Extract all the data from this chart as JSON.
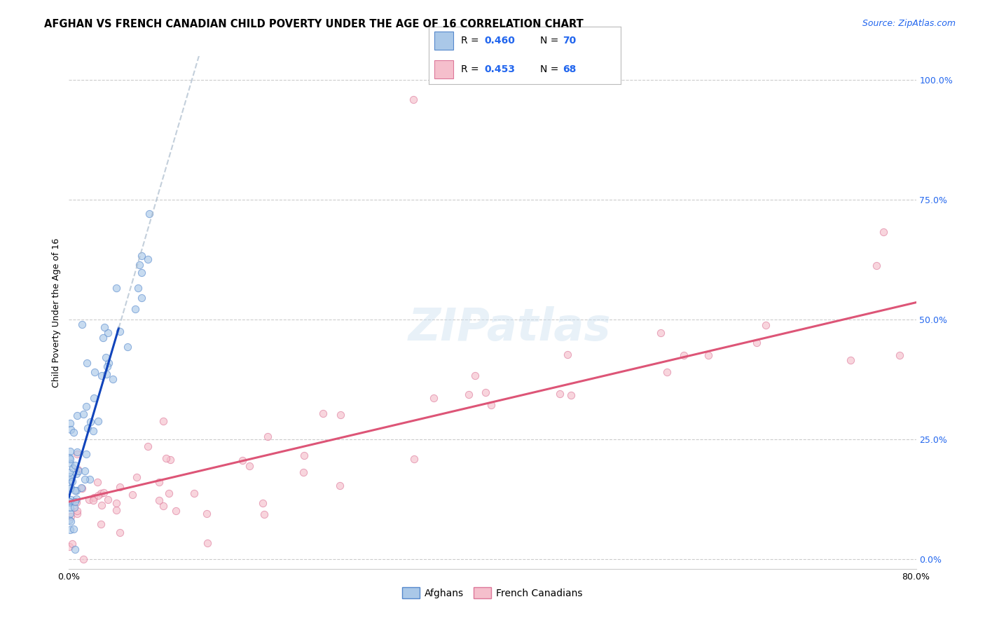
{
  "title": "AFGHAN VS FRENCH CANADIAN CHILD POVERTY UNDER THE AGE OF 16 CORRELATION CHART",
  "source": "Source: ZipAtlas.com",
  "ylabel": "Child Poverty Under the Age of 16",
  "xlim": [
    0.0,
    0.8
  ],
  "ylim": [
    -0.02,
    1.05
  ],
  "grid_color": "#cccccc",
  "background_color": "#ffffff",
  "watermark": "ZIPatlas",
  "afghans_color": "#aac8e8",
  "afghans_edge_color": "#5588cc",
  "afghans_line_color": "#1144bb",
  "afghans_dash_color": "#aabbdd",
  "french_color": "#f5bfcc",
  "french_edge_color": "#dd7799",
  "french_line_color": "#dd5577",
  "legend_R_afghan": "0.460",
  "legend_N_afghan": "70",
  "legend_R_french": "0.453",
  "legend_N_french": "68",
  "legend_color": "#2266ee",
  "title_fontsize": 10.5,
  "axis_label_fontsize": 9,
  "tick_fontsize": 9,
  "source_fontsize": 9,
  "marker_size": 55,
  "marker_alpha": 0.65,
  "afghan_line_intercept": 0.13,
  "afghan_line_slope": 7.5,
  "french_line_intercept": 0.12,
  "french_line_slope": 0.52
}
